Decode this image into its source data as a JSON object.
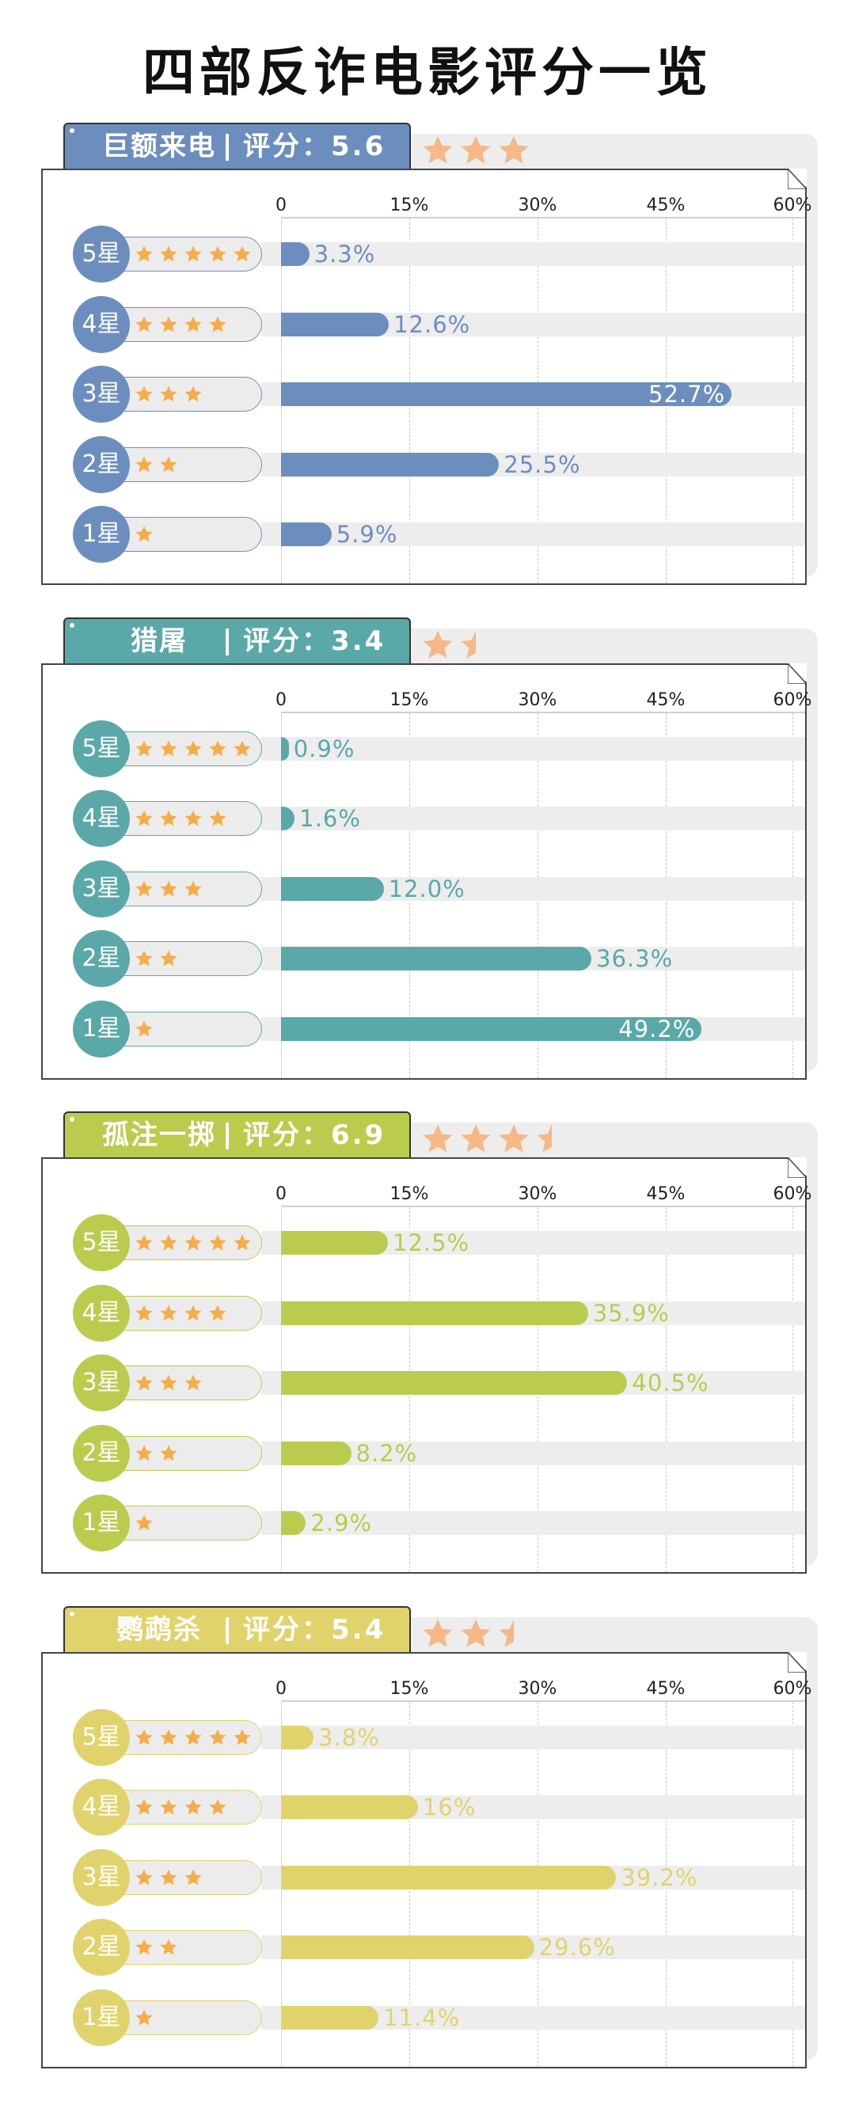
{
  "title": "四部反诈电影评分一览",
  "colors": {
    "star_small": "#f6ad49",
    "star_big": "#f6b886",
    "track": "#ededed"
  },
  "chart_data": [
    {
      "type": "bar",
      "title": "巨额来电",
      "score_label": "评分：5.6",
      "stars": 3,
      "color": "#6c8ebf",
      "xlim": [
        0,
        60
      ],
      "ticks": [
        "0",
        "15%",
        "30%",
        "45%",
        "60%"
      ],
      "tick_values": [
        0,
        15,
        30,
        45,
        60
      ],
      "categories": [
        "5星",
        "4星",
        "3星",
        "2星",
        "1星"
      ],
      "category_stars": [
        5,
        4,
        3,
        2,
        1
      ],
      "values": [
        3.3,
        12.6,
        52.7,
        25.5,
        5.9
      ],
      "labels": [
        "3.3%",
        "12.6%",
        "52.7%",
        "25.5%",
        "5.9%"
      ]
    },
    {
      "type": "bar",
      "title": "猎屠",
      "score_label": "评分：3.4",
      "stars": 1.5,
      "color": "#5aa8a8",
      "xlim": [
        0,
        60
      ],
      "ticks": [
        "0",
        "15%",
        "30%",
        "45%",
        "60%"
      ],
      "tick_values": [
        0,
        15,
        30,
        45,
        60
      ],
      "categories": [
        "5星",
        "4星",
        "3星",
        "2星",
        "1星"
      ],
      "category_stars": [
        5,
        4,
        3,
        2,
        1
      ],
      "values": [
        0.9,
        1.6,
        12.0,
        36.3,
        49.2
      ],
      "labels": [
        "0.9%",
        "1.6%",
        "12.0%",
        "36.3%",
        "49.2%"
      ]
    },
    {
      "type": "bar",
      "title": "孤注一掷",
      "score_label": "评分：6.9",
      "stars": 3.5,
      "color": "#bbcb4d",
      "xlim": [
        0,
        60
      ],
      "ticks": [
        "0",
        "15%",
        "30%",
        "45%",
        "60%"
      ],
      "tick_values": [
        0,
        15,
        30,
        45,
        60
      ],
      "categories": [
        "5星",
        "4星",
        "3星",
        "2星",
        "1星"
      ],
      "category_stars": [
        5,
        4,
        3,
        2,
        1
      ],
      "values": [
        12.5,
        35.9,
        40.5,
        8.2,
        2.9
      ],
      "labels": [
        "12.5%",
        "35.9%",
        "40.5%",
        "8.2%",
        "2.9%"
      ]
    },
    {
      "type": "bar",
      "title": "鹦鹉杀",
      "score_label": "评分：5.4",
      "stars": 2.5,
      "color": "#e1d36c",
      "xlim": [
        0,
        60
      ],
      "ticks": [
        "0",
        "15%",
        "30%",
        "45%",
        "60%"
      ],
      "tick_values": [
        0,
        15,
        30,
        45,
        60
      ],
      "categories": [
        "5星",
        "4星",
        "3星",
        "2星",
        "1星"
      ],
      "category_stars": [
        5,
        4,
        3,
        2,
        1
      ],
      "values": [
        3.8,
        16,
        39.2,
        29.6,
        11.4
      ],
      "labels": [
        "3.8%",
        "16%",
        "39.2%",
        "29.6%",
        "11.4%"
      ]
    }
  ]
}
